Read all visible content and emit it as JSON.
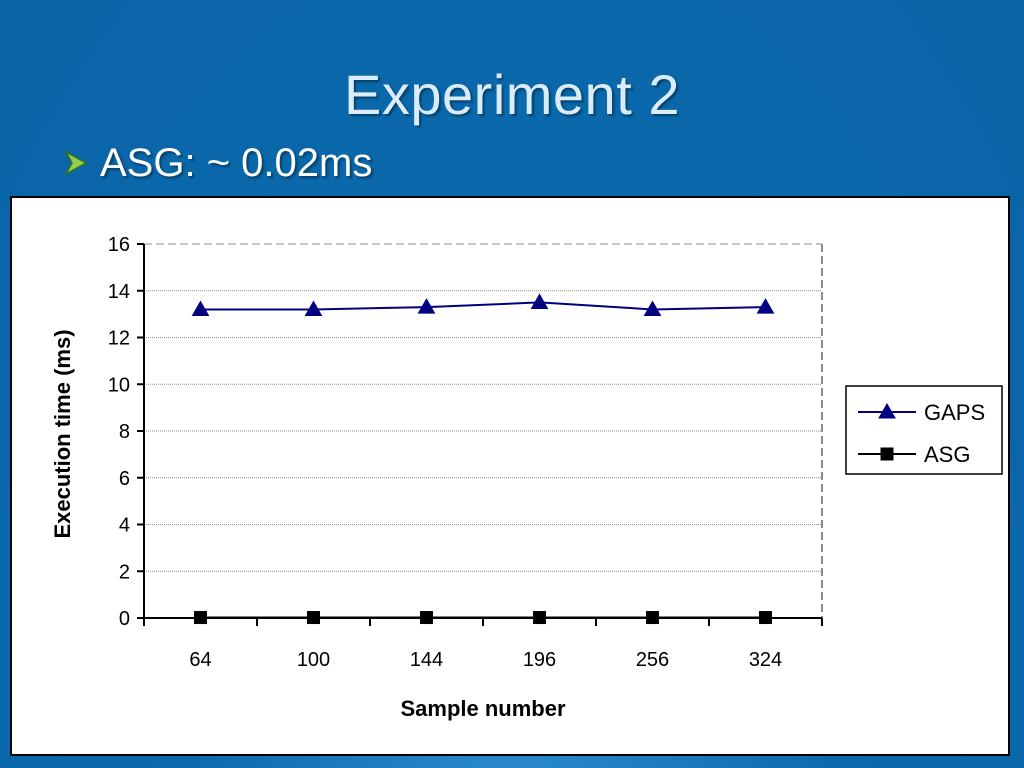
{
  "slide": {
    "title": "Experiment 2",
    "bullet": "ASG: ~ 0.02ms"
  },
  "colors": {
    "background": "#0a6aad",
    "gaps": "#000080",
    "asg": "#000000",
    "bullet_arrow": "#8fd14f"
  },
  "chart_data": {
    "type": "line",
    "categories": [
      "64",
      "100",
      "144",
      "196",
      "256",
      "324"
    ],
    "series": [
      {
        "name": "GAPS",
        "marker": "triangle",
        "values": [
          13.2,
          13.2,
          13.3,
          13.5,
          13.2,
          13.3
        ]
      },
      {
        "name": "ASG",
        "marker": "square",
        "values": [
          0.02,
          0.02,
          0.02,
          0.02,
          0.02,
          0.02
        ]
      }
    ],
    "xlabel": "Sample number",
    "ylabel": "Execution time (ms)",
    "ylim": [
      0,
      16
    ],
    "yticks": [
      0,
      2,
      4,
      6,
      8,
      10,
      12,
      14,
      16
    ],
    "grid": true,
    "legend_position": "right"
  }
}
